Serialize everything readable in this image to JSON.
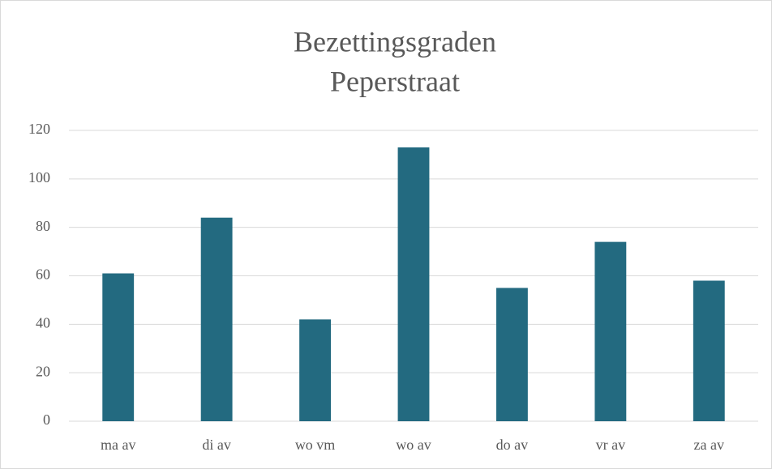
{
  "chart_data": {
    "type": "bar",
    "title": [
      "Bezettingsgraden",
      "Peperstraat"
    ],
    "categories": [
      "ma av",
      "di av",
      "wo vm",
      "wo av",
      "do av",
      "vr av",
      "za av"
    ],
    "values": [
      61,
      84,
      42,
      113,
      55,
      74,
      58
    ],
    "color": "#236a80",
    "ylim": [
      0,
      120
    ],
    "yticks": [
      0,
      20,
      40,
      60,
      80,
      100,
      120
    ],
    "grid": true
  }
}
